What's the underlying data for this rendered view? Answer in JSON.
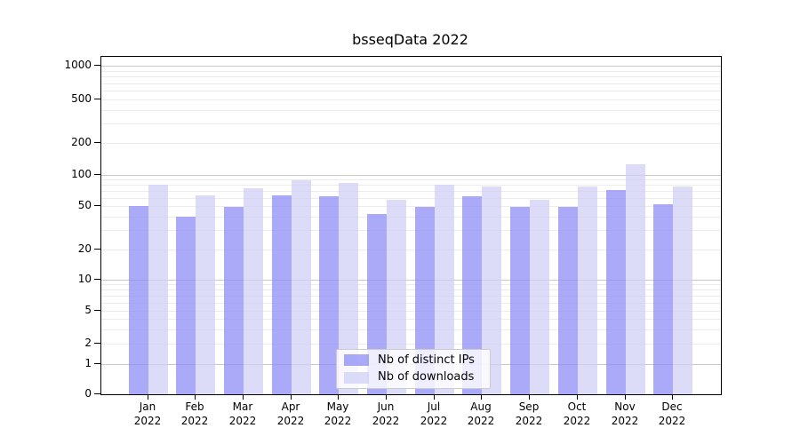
{
  "chart_data": {
    "type": "bar",
    "title": "bsseqData 2022",
    "categories": [
      "Jan",
      "Feb",
      "Mar",
      "Apr",
      "May",
      "Jun",
      "Jul",
      "Aug",
      "Sep",
      "Oct",
      "Nov",
      "Dec"
    ],
    "year_label": "2022",
    "series": [
      {
        "name": "Nb of distinct IPs",
        "color": "rgba(137,137,245,0.72)",
        "values": [
          50,
          40,
          49,
          63,
          62,
          42,
          49,
          62,
          49,
          49,
          72,
          52
        ]
      },
      {
        "name": "Nb of downloads",
        "color": "rgba(206,206,247,0.72)",
        "values": [
          81,
          64,
          75,
          88,
          83,
          57,
          81,
          77,
          58,
          78,
          125,
          78
        ]
      }
    ],
    "y_axis": {
      "tick_values": [
        0,
        1,
        2,
        5,
        10,
        20,
        50,
        100,
        200,
        500,
        1000
      ],
      "scale": "log-like with zero baseline",
      "top_value": 1200
    },
    "grid": {
      "major_values": [
        1,
        10,
        100,
        1000
      ],
      "minor_values": [
        2,
        3,
        4,
        5,
        6,
        7,
        8,
        9,
        20,
        30,
        40,
        50,
        60,
        70,
        80,
        90,
        200,
        300,
        400,
        500,
        600,
        700,
        800,
        900
      ]
    },
    "legend": {
      "entries": [
        "Nb of distinct IPs",
        "Nb of downloads"
      ],
      "position": "inside bottom center"
    }
  },
  "colors": {
    "background": "#ffffff",
    "bar_distinct_ips": "rgba(137,137,245,0.72)",
    "bar_downloads": "rgba(206,206,247,0.72)",
    "grid_major": "#c9c9c9",
    "grid_minor": "#ececec",
    "axis": "#000000",
    "text": "#000000",
    "legend_border": "#cccccc"
  }
}
